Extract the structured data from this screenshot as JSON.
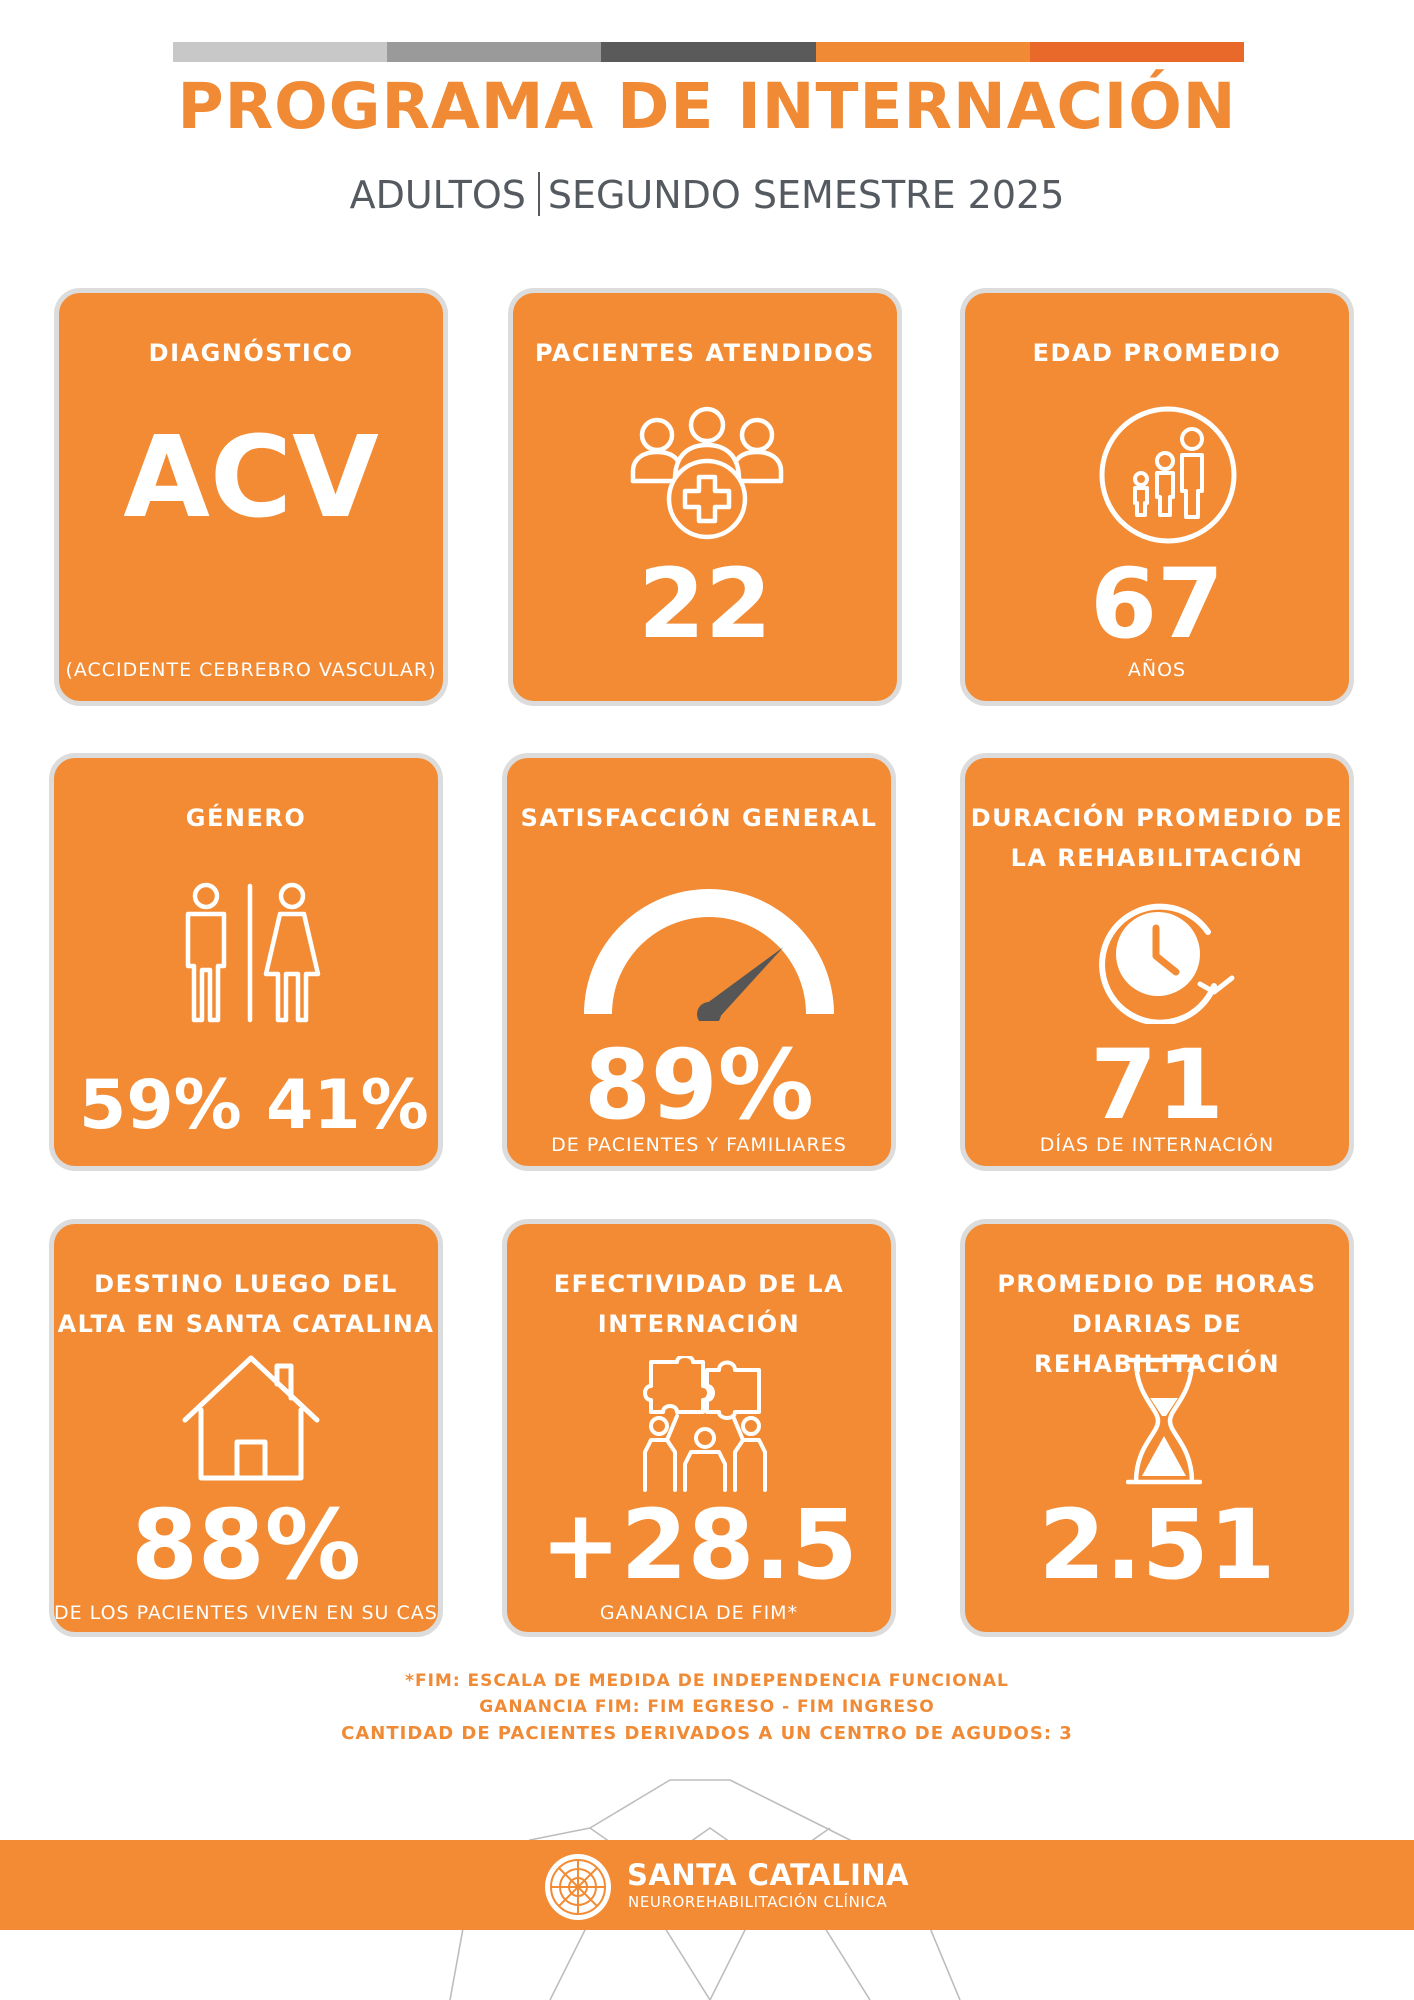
{
  "header": {
    "colors": [
      "#c8c8c8",
      "#9a9a9a",
      "#5a5a5a",
      "#f08a35",
      "#e8692a"
    ],
    "title": "PROGRAMA DE INTERNACIÓN",
    "subtitle_left": "ADULTOS",
    "subtitle_right": "SEGUNDO SEMESTRE 2025"
  },
  "cards": {
    "diagnostico": {
      "title": "DIAGNÓSTICO",
      "value": "ACV",
      "caption": "(ACCIDENTE CEBREBRO VASCULAR)"
    },
    "pacientes": {
      "title": "PACIENTES ATENDIDOS",
      "icon": "patients-cross-icon",
      "value": "22"
    },
    "edad": {
      "title": "EDAD PROMEDIO",
      "icon": "age-family-icon",
      "value": "67",
      "caption": "AÑOS"
    },
    "genero": {
      "title": "GÉNERO",
      "icon": "gender-icon",
      "male": "59%",
      "female": "41%"
    },
    "satisfaccion": {
      "title": "SATISFACCIÓN GENERAL",
      "icon": "gauge-icon",
      "value": "89%",
      "caption": "DE PACIENTES Y FAMILIARES"
    },
    "duracion": {
      "title_line1": "DURACIÓN PROMEDIO DE",
      "title_line2": "LA REHABILITACIÓN",
      "icon": "clock-icon",
      "value": "71",
      "caption": "DÍAS DE INTERNACIÓN"
    },
    "destino": {
      "title_line1": "DESTINO LUEGO DEL",
      "title_line2": "ALTA EN SANTA CATALINA",
      "icon": "house-icon",
      "value": "88%",
      "caption": "DE LOS PACIENTES VIVEN EN SU CASA"
    },
    "efectividad": {
      "title_line1": "EFECTIVIDAD DE LA",
      "title_line2": "INTERNACIÓN",
      "icon": "puzzle-team-icon",
      "value": "+28.5",
      "caption": "GANANCIA DE FIM*"
    },
    "horas": {
      "title_line1": "PROMEDIO DE HORAS",
      "title_line2": "DIARIAS DE REHABILITACIÓN",
      "icon": "hourglass-icon",
      "value": "2.51"
    }
  },
  "footnotes": {
    "line1": "*FIM: ESCALA DE MEDIDA DE INDEPENDENCIA FUNCIONAL",
    "line2": "GANANCIA FIM: FIM EGRESO - FIM INGRESO",
    "line3": "CANTIDAD DE PACIENTES DERIVADOS A UN CENTRO DE AGUDOS: 3"
  },
  "brand": {
    "name": "SANTA CATALINA",
    "tagline": "NEUROREHABILITACIÓN CLÍNICA",
    "accent": "#f28b33"
  }
}
